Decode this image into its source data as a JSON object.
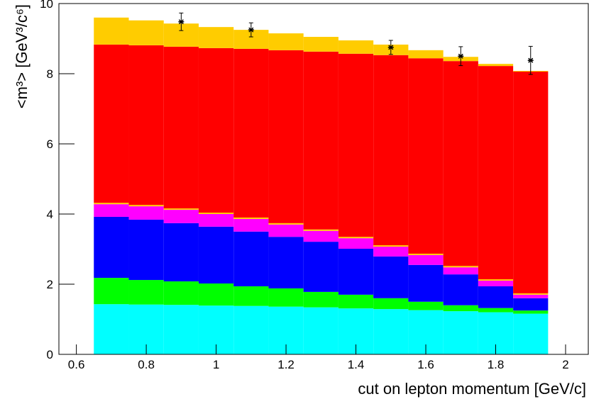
{
  "chart_data": {
    "type": "histogram",
    "stacked": true,
    "x_label": "cut on lepton momentum [GeV/c]",
    "y_label": "<m³> [GeV³/c⁶]",
    "bins": [
      0.65,
      0.75,
      0.85,
      0.95,
      1.05,
      1.15,
      1.25,
      1.35,
      1.45,
      1.55,
      1.65,
      1.75,
      1.85,
      1.95
    ],
    "series": [
      {
        "color": "#00ffff",
        "values": [
          1.43,
          1.42,
          1.41,
          1.39,
          1.38,
          1.36,
          1.34,
          1.31,
          1.29,
          1.26,
          1.23,
          1.2,
          1.16
        ]
      },
      {
        "color": "#00ff00",
        "values": [
          0.75,
          0.7,
          0.67,
          0.63,
          0.56,
          0.52,
          0.44,
          0.39,
          0.31,
          0.24,
          0.17,
          0.12,
          0.09
        ]
      },
      {
        "color": "#0000ff",
        "values": [
          1.74,
          1.72,
          1.66,
          1.62,
          1.56,
          1.47,
          1.43,
          1.31,
          1.19,
          1.05,
          0.88,
          0.62,
          0.35
        ]
      },
      {
        "color": "#ff00ff",
        "values": [
          0.36,
          0.38,
          0.38,
          0.36,
          0.36,
          0.35,
          0.31,
          0.3,
          0.28,
          0.28,
          0.2,
          0.16,
          0.1
        ]
      },
      {
        "color": "#ffcc00",
        "values": [
          0.04,
          0.04,
          0.04,
          0.04,
          0.04,
          0.04,
          0.04,
          0.04,
          0.04,
          0.04,
          0.04,
          0.04,
          0.04
        ]
      },
      {
        "color": "#ff0000",
        "values": [
          4.51,
          4.55,
          4.61,
          4.69,
          4.81,
          4.93,
          5.07,
          5.22,
          5.42,
          5.57,
          5.84,
          6.08,
          6.32
        ]
      },
      {
        "color": "#ffcc00",
        "values": [
          0.77,
          0.71,
          0.66,
          0.6,
          0.54,
          0.48,
          0.42,
          0.38,
          0.3,
          0.23,
          0.12,
          0.06,
          0.02
        ]
      }
    ],
    "points": {
      "color": "#000000",
      "x": [
        0.9,
        1.1,
        1.5,
        1.7,
        1.9
      ],
      "values": [
        9.48,
        9.25,
        8.75,
        8.5,
        8.38
      ],
      "errors": [
        0.25,
        0.2,
        0.2,
        0.27,
        0.4
      ]
    },
    "xlim": [
      0.55,
      2.065
    ],
    "ylim": [
      0,
      10
    ],
    "xticks": [
      0.6,
      0.8,
      1,
      1.2,
      1.4,
      1.6,
      1.8,
      2
    ],
    "yticks": [
      0,
      2,
      4,
      6,
      8,
      10
    ]
  }
}
